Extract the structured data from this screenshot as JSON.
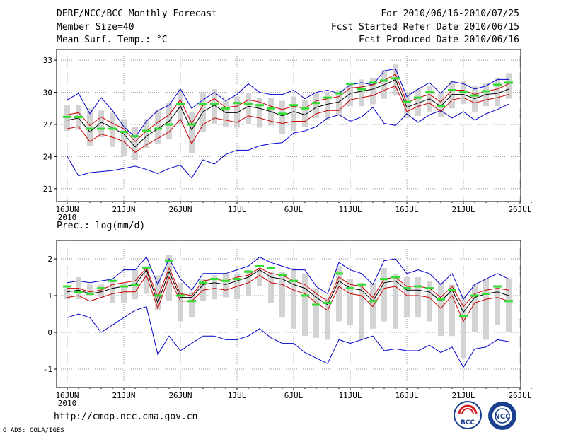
{
  "header": {
    "title": "DERF/NCC/BCC Monthly Forecast",
    "member": "Member Size=40",
    "variable": "Mean Surf. Temp.: °C",
    "period": "For 2010/06/16-2010/07/25",
    "started": "Fcst Started Refer Date 2010/06/15",
    "produced": "Fcst Produced Date 2010/06/16"
  },
  "footer": {
    "url": "http://cmdp.ncc.cma.gov.cn",
    "grads": "GrADS: COLA/IGES"
  },
  "logos": {
    "bcc": "BCC",
    "ncc": "NCC"
  },
  "colors": {
    "max_min": "#0000cc",
    "spread": "#cc0000",
    "mean": "#000000",
    "obs": "#33dd33",
    "box": "#d3d3d3",
    "grid": "#999999"
  },
  "chart_data": [
    {
      "type": "line",
      "title": "Mean Surf. Temp.: °C",
      "xlabels": [
        "16JUN",
        "21JUN",
        "26JUN",
        "1JUL",
        "6JUL",
        "11JUL",
        "16JUL",
        "21JUL",
        "26JUL"
      ],
      "year_label": "2010",
      "ylim": [
        19.8,
        34
      ],
      "yticks": [
        "21",
        "24",
        "27",
        "30",
        "33"
      ],
      "days": 40,
      "series": [
        {
          "name": "max",
          "values": [
            29.3,
            29.9,
            28.0,
            29.5,
            28.3,
            26.8,
            25.8,
            27.3,
            28.3,
            28.8,
            30.3,
            28.5,
            29.3,
            30.0,
            29.2,
            29.8,
            30.8,
            30.0,
            29.8,
            29.8,
            30.2,
            29.4,
            30.0,
            30.2,
            29.9,
            30.7,
            30.9,
            30.7,
            32.0,
            32.2,
            29.6,
            30.3,
            30.9,
            29.9,
            31.0,
            30.8,
            30.3,
            30.6,
            31.2,
            31.2
          ]
        },
        {
          "name": "upper",
          "values": [
            27.9,
            28.1,
            26.9,
            27.7,
            27.1,
            26.6,
            25.4,
            26.4,
            27.2,
            27.9,
            29.3,
            27.1,
            28.8,
            29.4,
            28.6,
            28.7,
            29.3,
            29.1,
            28.7,
            28.4,
            28.7,
            28.5,
            29.2,
            29.4,
            29.6,
            30.4,
            30.5,
            30.7,
            31.1,
            31.7,
            29.0,
            29.5,
            29.8,
            29.1,
            30.2,
            30.2,
            29.8,
            30.1,
            30.3,
            30.8
          ]
        },
        {
          "name": "mean",
          "values": [
            27.4,
            27.6,
            26.3,
            27.2,
            26.7,
            26.1,
            24.9,
            25.9,
            26.6,
            27.3,
            28.7,
            26.5,
            28.2,
            28.8,
            28.1,
            28.1,
            28.7,
            28.5,
            28.2,
            27.8,
            28.2,
            27.9,
            28.6,
            28.9,
            29.1,
            29.9,
            30.1,
            30.3,
            30.7,
            31.2,
            28.6,
            29.0,
            29.4,
            28.7,
            29.8,
            29.8,
            29.4,
            29.8,
            29.9,
            30.3
          ]
        },
        {
          "name": "lower",
          "values": [
            26.6,
            26.8,
            25.4,
            26.1,
            25.8,
            25.4,
            24.4,
            25.1,
            25.7,
            26.3,
            27.5,
            25.2,
            27.0,
            27.6,
            27.4,
            27.2,
            27.8,
            27.6,
            27.3,
            27.1,
            27.3,
            27.3,
            28.0,
            28.3,
            28.3,
            29.3,
            29.5,
            29.7,
            30.2,
            30.6,
            28.2,
            28.7,
            29.0,
            28.2,
            29.3,
            29.5,
            29.0,
            29.3,
            29.5,
            29.8
          ]
        },
        {
          "name": "min",
          "values": [
            24.0,
            22.2,
            22.5,
            22.6,
            22.7,
            22.9,
            23.1,
            22.8,
            22.4,
            22.9,
            23.2,
            22.0,
            23.7,
            23.3,
            24.2,
            24.6,
            24.6,
            25.0,
            25.2,
            25.3,
            26.2,
            26.4,
            26.8,
            27.6,
            27.9,
            27.3,
            27.7,
            28.6,
            27.1,
            26.9,
            28.0,
            27.2,
            27.9,
            28.3,
            27.6,
            28.2,
            27.4,
            28.0,
            28.4,
            28.9
          ]
        },
        {
          "name": "box_high",
          "values": [
            28.8,
            28.8,
            28.5,
            28.3,
            28.1,
            27.5,
            26.8,
            27.5,
            28.3,
            29.0,
            30.3,
            28.2,
            29.9,
            30.3,
            29.2,
            29.6,
            29.9,
            29.5,
            29.5,
            29.2,
            29.6,
            29.3,
            30.0,
            29.9,
            30.2,
            30.9,
            31.2,
            31.3,
            32.1,
            32.6,
            29.9,
            30.3,
            30.6,
            30.0,
            31.0,
            31.1,
            30.6,
            30.9,
            31.3,
            31.8
          ]
        },
        {
          "name": "box_low",
          "values": [
            26.4,
            26.5,
            25.0,
            25.8,
            24.9,
            24.0,
            23.7,
            24.8,
            25.2,
            25.6,
            27.0,
            24.3,
            26.3,
            27.0,
            26.8,
            26.7,
            27.0,
            26.7,
            26.9,
            26.1,
            26.4,
            26.8,
            27.6,
            27.4,
            27.8,
            28.7,
            28.7,
            28.9,
            29.4,
            29.7,
            27.6,
            27.8,
            28.2,
            27.7,
            28.5,
            28.9,
            28.2,
            28.7,
            28.7,
            29.4
          ]
        },
        {
          "name": "observed",
          "values": [
            27.7,
            27.7,
            26.6,
            26.6,
            26.6,
            26.3,
            25.9,
            26.4,
            26.6,
            27.0,
            28.9,
            27.0,
            28.9,
            28.9,
            28.5,
            29.0,
            28.9,
            28.8,
            28.5,
            28.0,
            28.8,
            28.5,
            29.0,
            29.5,
            29.9,
            30.8,
            30.3,
            30.9,
            31.1,
            31.3,
            29.1,
            29.5,
            30.0,
            28.7,
            30.2,
            30.0,
            29.7,
            30.1,
            30.7,
            30.9
          ]
        }
      ]
    },
    {
      "type": "line",
      "title": "Prec.: log(mm/d)",
      "xlabels": [
        "16JUN",
        "21JUN",
        "26JUN",
        "1JUL",
        "6JUL",
        "11JUL",
        "16JUL",
        "21JUL",
        "26JUL"
      ],
      "year_label": "2010",
      "ylim": [
        -1.5,
        2.5
      ],
      "yticks": [
        "-1",
        "0",
        "1",
        "2"
      ],
      "days": 40,
      "series": [
        {
          "name": "max",
          "values": [
            1.35,
            1.4,
            1.35,
            1.4,
            1.45,
            1.7,
            1.7,
            2.05,
            1.3,
            2.0,
            1.45,
            1.15,
            1.6,
            1.6,
            1.6,
            1.7,
            1.8,
            2.05,
            1.9,
            1.8,
            1.7,
            1.7,
            1.25,
            1.05,
            1.9,
            1.7,
            1.6,
            1.3,
            1.95,
            2.0,
            1.6,
            1.7,
            1.6,
            1.3,
            1.6,
            0.9,
            1.3,
            1.45,
            1.6,
            1.45
          ]
        },
        {
          "name": "upper",
          "values": [
            1.2,
            1.2,
            1.1,
            1.15,
            1.3,
            1.35,
            1.4,
            1.75,
            0.95,
            1.75,
            1.05,
            1.0,
            1.4,
            1.45,
            1.4,
            1.5,
            1.55,
            1.75,
            1.6,
            1.55,
            1.4,
            1.3,
            1.05,
            0.85,
            1.5,
            1.3,
            1.25,
            0.95,
            1.45,
            1.5,
            1.25,
            1.25,
            1.2,
            0.95,
            1.25,
            0.7,
            1.05,
            1.15,
            1.2,
            1.15
          ]
        },
        {
          "name": "mean",
          "values": [
            1.1,
            1.15,
            1.05,
            1.1,
            1.2,
            1.25,
            1.3,
            1.7,
            0.8,
            1.65,
            0.95,
            0.95,
            1.3,
            1.35,
            1.3,
            1.4,
            1.5,
            1.7,
            1.5,
            1.45,
            1.3,
            1.2,
            0.95,
            0.75,
            1.4,
            1.2,
            1.15,
            0.85,
            1.35,
            1.4,
            1.15,
            1.15,
            1.1,
            0.85,
            1.15,
            0.55,
            0.95,
            1.05,
            1.1,
            1.0
          ]
        },
        {
          "name": "lower",
          "values": [
            0.95,
            1.0,
            0.85,
            0.95,
            1.05,
            1.1,
            1.1,
            1.55,
            0.65,
            1.5,
            0.85,
            0.85,
            1.15,
            1.2,
            1.15,
            1.25,
            1.35,
            1.55,
            1.35,
            1.3,
            1.15,
            1.05,
            0.8,
            0.6,
            1.25,
            1.05,
            1.0,
            0.7,
            1.2,
            1.25,
            1.0,
            1.0,
            0.95,
            0.65,
            1.0,
            0.3,
            0.8,
            0.9,
            0.95,
            0.85
          ]
        },
        {
          "name": "min",
          "values": [
            0.4,
            0.5,
            0.4,
            0.0,
            0.2,
            0.4,
            0.6,
            0.7,
            -0.6,
            -0.1,
            -0.5,
            -0.3,
            -0.1,
            -0.1,
            -0.2,
            -0.2,
            -0.1,
            0.1,
            -0.15,
            -0.3,
            -0.3,
            -0.55,
            -0.7,
            -0.85,
            -0.2,
            -0.3,
            -0.2,
            -0.1,
            -0.5,
            -0.45,
            -0.5,
            -0.5,
            -0.35,
            -0.55,
            -0.4,
            -0.95,
            -0.45,
            -0.4,
            -0.2,
            -0.25
          ]
        },
        {
          "name": "box_high",
          "values": [
            1.2,
            1.5,
            1.3,
            1.3,
            1.4,
            1.35,
            1.7,
            1.8,
            1.55,
            2.1,
            1.35,
            1.1,
            1.45,
            1.55,
            1.6,
            1.6,
            1.7,
            1.75,
            1.65,
            1.65,
            1.75,
            1.6,
            1.2,
            0.95,
            1.8,
            1.45,
            1.35,
            1.35,
            1.75,
            1.6,
            1.5,
            1.5,
            1.4,
            1.35,
            1.3,
            1.0,
            1.3,
            1.45,
            1.25,
            1.45
          ]
        },
        {
          "name": "box_low",
          "values": [
            0.9,
            0.9,
            1.0,
            0.95,
            0.8,
            0.8,
            0.9,
            1.05,
            0.6,
            0.85,
            0.3,
            0.4,
            0.85,
            0.9,
            0.95,
            0.9,
            1.0,
            1.25,
            0.8,
            0.4,
            0.1,
            -0.1,
            -0.15,
            -0.2,
            0.3,
            0.2,
            -0.2,
            0.1,
            0.3,
            0.1,
            0.4,
            0.4,
            0.3,
            -0.1,
            -0.1,
            -0.7,
            0.0,
            -0.2,
            0.2,
            0.0
          ]
        },
        {
          "name": "observed",
          "values": [
            1.25,
            1.1,
            1.05,
            1.2,
            1.4,
            1.25,
            1.3,
            1.75,
            1.0,
            1.95,
            1.0,
            0.85,
            1.35,
            1.45,
            1.4,
            1.45,
            1.65,
            1.8,
            1.75,
            1.55,
            1.4,
            1.0,
            0.75,
            0.8,
            1.6,
            1.2,
            1.3,
            0.85,
            1.45,
            1.5,
            1.2,
            1.25,
            1.2,
            0.9,
            1.15,
            0.45,
            1.0,
            1.05,
            1.25,
            0.85
          ]
        }
      ]
    }
  ]
}
